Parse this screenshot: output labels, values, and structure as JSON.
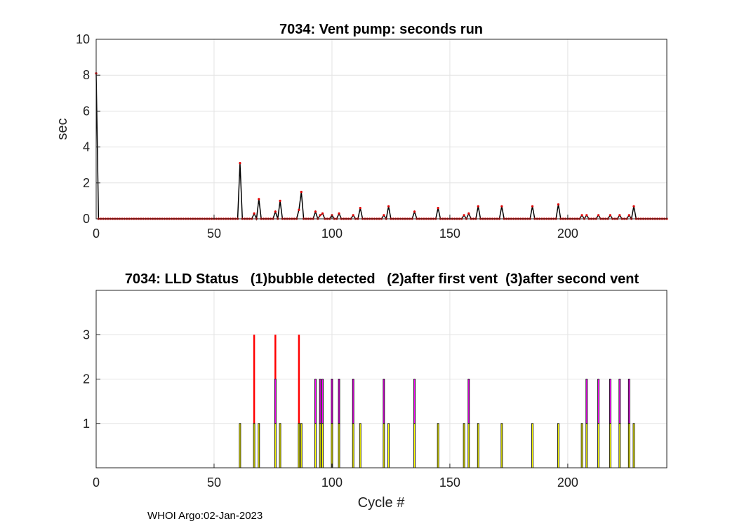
{
  "footer": "WHOI Argo:02-Jan-2023",
  "chart_data": [
    {
      "type": "line",
      "title": "7034: Vent pump: seconds run",
      "xlabel": "",
      "ylabel": "sec",
      "xlim": [
        0,
        242
      ],
      "ylim": [
        0,
        10
      ],
      "xticks": [
        0,
        50,
        100,
        150,
        200
      ],
      "yticks": [
        0,
        2,
        4,
        6,
        8,
        10
      ],
      "grid": true,
      "line_color": "#000000",
      "marker_color": "#dd0000",
      "x_range": [
        0,
        242
      ],
      "y_default": 0,
      "points": [
        [
          0,
          8.1
        ],
        [
          61,
          3.1
        ],
        [
          67,
          0.3
        ],
        [
          69,
          1.1
        ],
        [
          76,
          0.4
        ],
        [
          78,
          1.0
        ],
        [
          86,
          0.5
        ],
        [
          87,
          1.5
        ],
        [
          93,
          0.4
        ],
        [
          95,
          0.2
        ],
        [
          96,
          0.3
        ],
        [
          100,
          0.2
        ],
        [
          103,
          0.3
        ],
        [
          109,
          0.2
        ],
        [
          112,
          0.6
        ],
        [
          122,
          0.2
        ],
        [
          124,
          0.7
        ],
        [
          135,
          0.4
        ],
        [
          145,
          0.6
        ],
        [
          156,
          0.2
        ],
        [
          158,
          0.3
        ],
        [
          162,
          0.7
        ],
        [
          172,
          0.7
        ],
        [
          185,
          0.7
        ],
        [
          196,
          0.8
        ],
        [
          206,
          0.2
        ],
        [
          208,
          0.2
        ],
        [
          213,
          0.2
        ],
        [
          218,
          0.2
        ],
        [
          222,
          0.2
        ],
        [
          226,
          0.2
        ],
        [
          228,
          0.7
        ]
      ]
    },
    {
      "type": "bar",
      "title": "7034: LLD Status   (1)bubble detected   (2)after first vent  (3)after second vent",
      "xlabel": "Cycle #",
      "ylabel": "",
      "xlim": [
        0,
        242
      ],
      "ylim": [
        0,
        4
      ],
      "xticks": [
        0,
        50,
        100,
        150,
        200
      ],
      "yticks": [
        1,
        2,
        3
      ],
      "grid": true,
      "series": [
        {
          "level": 1,
          "color": "#ffff00",
          "x": [
            61,
            67,
            69,
            76,
            78,
            86,
            87,
            93,
            95,
            96,
            100,
            103,
            109,
            112,
            122,
            124,
            135,
            145,
            156,
            158,
            162,
            172,
            185,
            196,
            206,
            208,
            213,
            218,
            222,
            226,
            228
          ]
        },
        {
          "level": 2,
          "color": "#ff00ff",
          "x": [
            76,
            93,
            95,
            96,
            100,
            103,
            109,
            122,
            135,
            158,
            208,
            213,
            218,
            222,
            226
          ]
        },
        {
          "level": 3,
          "color": "#ff0000",
          "x": [
            67,
            76,
            86
          ]
        }
      ]
    }
  ]
}
